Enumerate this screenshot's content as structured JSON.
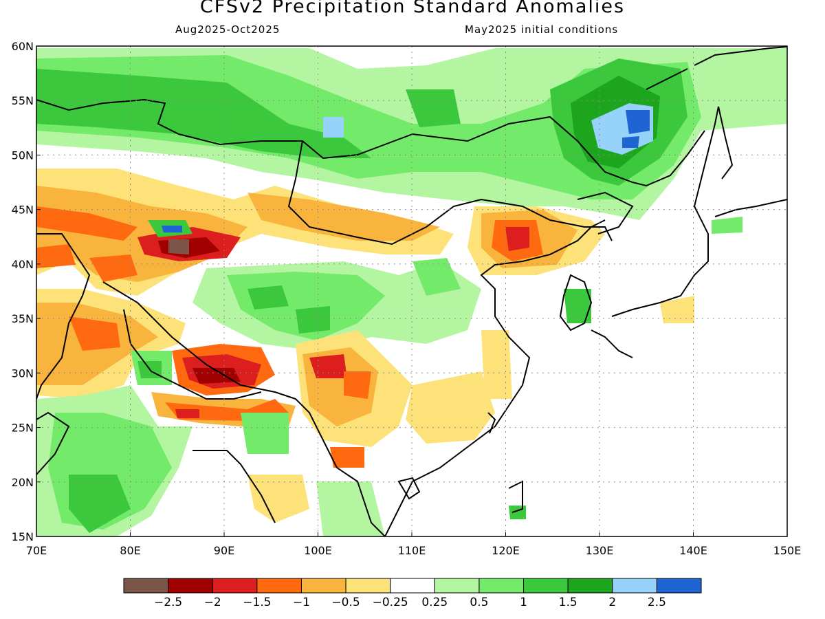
{
  "title": "CFSv2 Precipitation Standard Anomalies",
  "subtitle_left": "Aug2025-Oct2025",
  "subtitle_right": "May2025 initial conditions",
  "map": {
    "lon_range": [
      70,
      150
    ],
    "lat_range": [
      15,
      60
    ],
    "lon_ticks": [
      "70E",
      "80E",
      "90E",
      "100E",
      "110E",
      "120E",
      "130E",
      "140E",
      "150E"
    ],
    "lat_ticks": [
      "60N",
      "55N",
      "50N",
      "45N",
      "40N",
      "35N",
      "30N",
      "25N",
      "20N",
      "15N"
    ],
    "grid": "dotted"
  },
  "colorbar": {
    "colors": [
      "#7a5548",
      "#a00000",
      "#dc1e1e",
      "#ff6a10",
      "#f8b43c",
      "#fde27a",
      "#ffffff",
      "#b4f5a2",
      "#74ea6a",
      "#3cc83c",
      "#1ea51e",
      "#96d2fa",
      "#1e64d2"
    ],
    "labels": [
      "-2.5",
      "-2",
      "-1.5",
      "-1",
      "-0.5",
      "-0.25",
      "0.25",
      "0.5",
      "1",
      "1.5",
      "2",
      "2.5"
    ]
  },
  "colors": {
    "land_outline": "#000000",
    "grid": "#8a8a8a"
  }
}
